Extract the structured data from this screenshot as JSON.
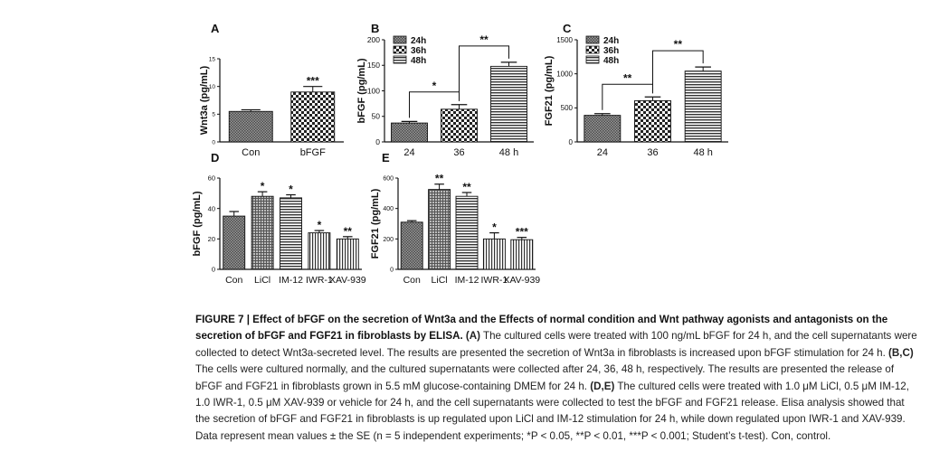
{
  "figure": {
    "caption": {
      "label": "FIGURE 7 | ",
      "title": "Effect of bFGF on the secretion of Wnt3a and the Effects of normal condition and Wnt pathway agonists and antagonists on the secretion of bFGF and FGF21 in fibroblasts by ELISA.",
      "a_ref": " (A)",
      "a_text": " The cultured cells were treated with 100 ng/mL bFGF for 24 h, and the cell supernatants were collected to detect Wnt3a-secreted level. The results are presented the secretion of Wnt3a in fibroblasts is increased upon bFGF stimulation for 24 h.",
      "bc_ref": " (B,C)",
      "bc_text": " The cells were cultured normally, and the cultured supernatants were collected after 24, 36, 48 h, respectively. The results are presented the release of bFGF and FGF21 in fibroblasts grown in 5.5 mM glucose-containing DMEM for 24 h.",
      "de_ref": " (D,E)",
      "de_text": " The cultured cells were treated with 1.0 μM LiCl, 0.5 μM IM-12, 1.0 IWR-1, 0.5 μM XAV-939 or vehicle for 24 h, and the cell supernatants were collected to test the bFGF and FGF21 release. Elisa analysis showed that the secretion of bFGF and FGF21 in fibroblasts is up regulated upon LiCl and IM-12 stimulation for 24 h, while down regulated upon IWR-1 and XAV-939. Data represent mean values ± the SE (n = 5 independent experiments; *P < 0.05, **P < 0.01, ***P < 0.001; Student’s t-test). Con, control."
    }
  },
  "chart_data": [
    {
      "panel": "A",
      "type": "bar",
      "ylabel": "Wnt3a (pg/mL)",
      "ylim": [
        0,
        15
      ],
      "yticks": [
        "0",
        "5",
        "10",
        "15"
      ],
      "categories": [
        "Con",
        "bFGF"
      ],
      "values": [
        5.5,
        9.0
      ],
      "errors": [
        0.3,
        1.0
      ],
      "significance": [
        "",
        "***"
      ],
      "brackets": [],
      "legend": []
    },
    {
      "panel": "B",
      "type": "bar",
      "ylabel": "bFGF (pg/mL)",
      "ylim": [
        0,
        200
      ],
      "yticks": [
        "0",
        "50",
        "100",
        "150",
        "200"
      ],
      "categories": [
        "24",
        "36",
        "48 h"
      ],
      "values": [
        37,
        64,
        148
      ],
      "errors": [
        3,
        9,
        8
      ],
      "significance": [
        "",
        "",
        ""
      ],
      "brackets": [
        {
          "from": 0,
          "to": 1,
          "label": "*"
        },
        {
          "from": 1,
          "to": 2,
          "label": "**"
        }
      ],
      "legend": [
        "24h",
        "36h",
        "48h"
      ]
    },
    {
      "panel": "C",
      "type": "bar",
      "ylabel": "FGF21 (pg/mL)",
      "ylim": [
        0,
        1500
      ],
      "yticks": [
        "0",
        "500",
        "1000",
        "1500"
      ],
      "categories": [
        "24",
        "36",
        "48 h"
      ],
      "values": [
        390,
        605,
        1040
      ],
      "errors": [
        25,
        55,
        60
      ],
      "significance": [
        "",
        "",
        ""
      ],
      "brackets": [
        {
          "from": 0,
          "to": 1,
          "label": "**"
        },
        {
          "from": 1,
          "to": 2,
          "label": "**"
        }
      ],
      "legend": [
        "24h",
        "36h",
        "48h"
      ]
    },
    {
      "panel": "D",
      "type": "bar",
      "ylabel": "bFGF (pg/mL)",
      "ylim": [
        0,
        60
      ],
      "yticks": [
        "0",
        "20",
        "40",
        "60"
      ],
      "categories": [
        "Con",
        "LiCl",
        "IM-12",
        "IWR-1",
        "XAV-939"
      ],
      "values": [
        35,
        48,
        47,
        24,
        20
      ],
      "errors": [
        3,
        3,
        2,
        1.5,
        1.5
      ],
      "significance": [
        "",
        "*",
        "*",
        "*",
        "**"
      ],
      "brackets": [],
      "legend": []
    },
    {
      "panel": "E",
      "type": "bar",
      "ylabel": "FGF21 (pg/mL)",
      "ylim": [
        0,
        600
      ],
      "yticks": [
        "0",
        "200",
        "400",
        "600"
      ],
      "categories": [
        "Con",
        "LiCl",
        "IM-12",
        "IWR-1",
        "XAV-939"
      ],
      "values": [
        310,
        525,
        480,
        200,
        195
      ],
      "errors": [
        10,
        35,
        25,
        40,
        15
      ],
      "significance": [
        "",
        "**",
        "**",
        "*",
        "***"
      ],
      "brackets": [],
      "legend": []
    }
  ]
}
